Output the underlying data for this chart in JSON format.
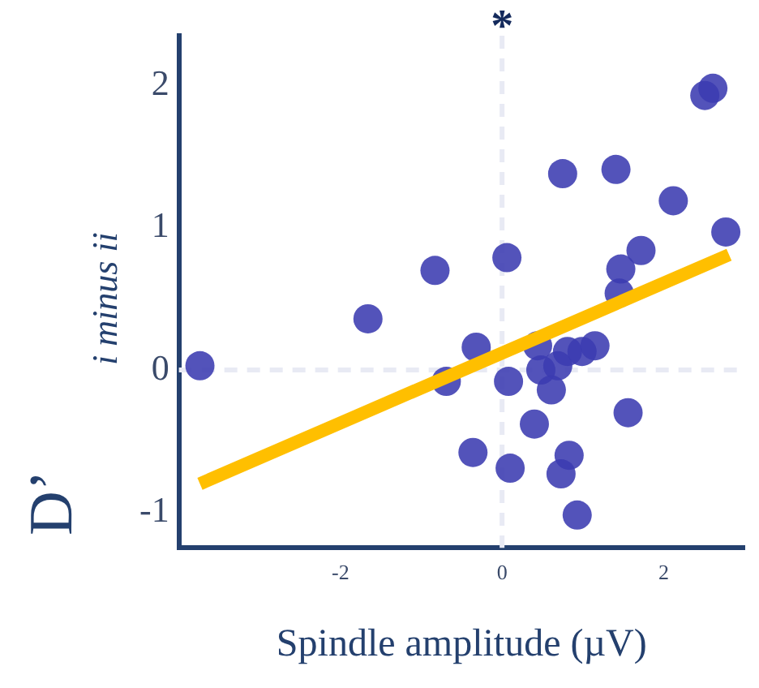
{
  "chart_data": {
    "type": "scatter",
    "xlabel": "Spindle amplitude (µV)",
    "ylabel": "D’ i minus ii",
    "xlim": [
      -4,
      3
    ],
    "ylim": [
      -1.25,
      2.35
    ],
    "xticks": [
      -2,
      0,
      2
    ],
    "yticks": [
      -1,
      0,
      1,
      2
    ],
    "grid": false,
    "legend": false,
    "marker": "circle",
    "series": [
      {
        "color": "#3b3bb0",
        "x": [
          -3.74,
          -1.66,
          -0.83,
          -0.32,
          -0.69,
          -0.36,
          0.06,
          0.08,
          0.1,
          0.75,
          1.41,
          2.12,
          1.72,
          1.47,
          1.45,
          2.51,
          2.61,
          2.77,
          0.44,
          0.48,
          0.69,
          0.81,
          0.99,
          1.15,
          0.61,
          0.4,
          1.56,
          0.83,
          0.73,
          0.93
        ],
        "values": [
          0.03,
          0.36,
          0.7,
          0.16,
          -0.08,
          -0.58,
          0.79,
          -0.08,
          -0.69,
          1.38,
          1.41,
          1.19,
          0.84,
          0.71,
          0.54,
          1.93,
          1.98,
          0.97,
          0.17,
          0,
          0.03,
          0.13,
          0.13,
          0.17,
          -0.14,
          -0.38,
          -0.3,
          -0.6,
          -0.73,
          -1.02
        ]
      },
      {
        "type": "line",
        "color": "#ffbf00",
        "x": [
          -3.74,
          2.81
        ],
        "values": [
          -0.8,
          0.81
        ],
        "marker": "none"
      }
    ],
    "ref_lines": [
      {
        "axis": "x",
        "value": 0,
        "label": "*",
        "color": "#e8eaf4",
        "line_style": "dashed"
      },
      {
        "axis": "y",
        "value": 0,
        "color": "#e8eaf4",
        "line_style": "dashed"
      }
    ]
  }
}
